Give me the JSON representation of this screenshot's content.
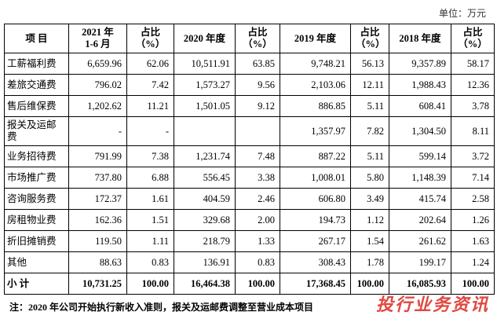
{
  "unit": "单位：万元",
  "table": {
    "header": [
      [
        "项 目"
      ],
      [
        "2021 年",
        "1-6 月"
      ],
      [
        "占比",
        "（%）"
      ],
      [
        "2020 年度"
      ],
      [
        "占比",
        "（%）"
      ],
      [
        "2019 年度"
      ],
      [
        "占比",
        "（%）"
      ],
      [
        "2018 年度"
      ],
      [
        "占比",
        "（%）"
      ]
    ],
    "rows": [
      [
        "工薪福利费",
        "6,659.96",
        "62.06",
        "10,511.91",
        "63.85",
        "9,748.21",
        "56.13",
        "9,357.89",
        "58.17"
      ],
      [
        "差旅交通费",
        "796.02",
        "7.42",
        "1,573.27",
        "9.56",
        "2,103.06",
        "12.11",
        "1,988.43",
        "12.36"
      ],
      [
        "售后维保费",
        "1,202.62",
        "11.21",
        "1,501.05",
        "9.12",
        "886.85",
        "5.11",
        "608.41",
        "3.78"
      ],
      [
        "报关及运邮费",
        "-",
        "-",
        null,
        null,
        "1,357.97",
        "7.82",
        "1,304.50",
        "8.11"
      ],
      [
        "业务招待费",
        "791.99",
        "7.38",
        "1,231.74",
        "7.48",
        "887.22",
        "5.11",
        "599.14",
        "3.72"
      ],
      [
        "市场推广费",
        "737.80",
        "6.88",
        "556.45",
        "3.38",
        "1,008.01",
        "5.80",
        "1,148.39",
        "7.14"
      ],
      [
        "咨询服务费",
        "172.37",
        "1.61",
        "404.59",
        "2.46",
        "606.80",
        "3.49",
        "415.74",
        "2.58"
      ],
      [
        "房租物业费",
        "162.36",
        "1.51",
        "329.68",
        "2.00",
        "194.73",
        "1.12",
        "202.64",
        "1.26"
      ],
      [
        "折旧摊销费",
        "119.50",
        "1.11",
        "218.79",
        "1.33",
        "267.17",
        "1.54",
        "261.62",
        "1.63"
      ],
      [
        "其他",
        "88.63",
        "0.83",
        "136.91",
        "0.83",
        "308.43",
        "1.78",
        "199.17",
        "1.24"
      ],
      [
        "小 计",
        "10,731.25",
        "100.00",
        "16,464.38",
        "100.00",
        "17,368.45",
        "100.00",
        "16,085.93",
        "100.00"
      ]
    ]
  },
  "note": "注：2020 年公司开始执行新收入准则，报关及运邮费调整至营业成本项目",
  "watermark": "投行业务资讯"
}
